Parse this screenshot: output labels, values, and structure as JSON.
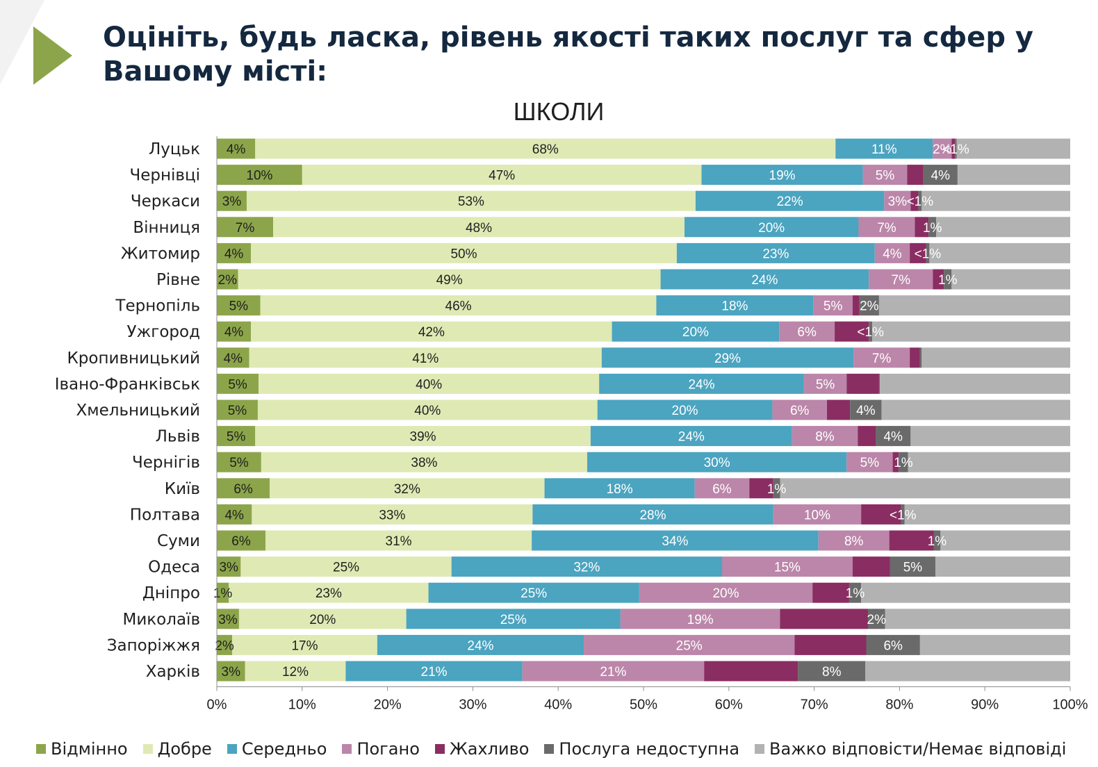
{
  "page": {
    "heading": "Оцініть, будь ласка, рівень якості таких послуг та сфер у Вашому місті:"
  },
  "colors": {
    "series": [
      "#8ca54a",
      "#dfe9b4",
      "#4ba4c0",
      "#bb86a9",
      "#8a2d62",
      "#6a6a6a",
      "#b2b2b2"
    ],
    "heading_text": "#14283f",
    "arrow": "#8ca54a",
    "label_dark": "#1f1f1f",
    "label_light": "#ffffff"
  },
  "chart_data": {
    "type": "bar",
    "orientation": "horizontal",
    "stacked": true,
    "title": "ШКОЛИ",
    "xlim": [
      0,
      100
    ],
    "x_ticks": [
      "0%",
      "10%",
      "20%",
      "30%",
      "40%",
      "50%",
      "60%",
      "70%",
      "80%",
      "90%",
      "100%"
    ],
    "legend_position": "bottom",
    "categories": [
      "Луцьк",
      "Чернівці",
      "Черкаси",
      "Вінниця",
      "Житомир",
      "Рівне",
      "Тернопіль",
      "Ужгород",
      "Кропивницький",
      "Івано-Франківськ",
      "Хмельницький",
      "Львів",
      "Чернігів",
      "Київ",
      "Полтава",
      "Суми",
      "Одеса",
      "Дніпро",
      "Миколаїв",
      "Запоріжжя",
      "Харків"
    ],
    "series": [
      {
        "name": "Відмінно",
        "values": [
          4.5,
          10,
          3.5,
          6.6,
          4,
          2.5,
          5.1,
          4,
          3.8,
          4.9,
          4.8,
          4.5,
          5.2,
          6.2,
          4.1,
          5.7,
          2.8,
          1.4,
          2.6,
          1.8,
          3.3
        ],
        "labels": [
          "4%",
          "10%",
          "3%",
          "7%",
          "4%",
          "2%",
          "5%",
          "4%",
          "4%",
          "5%",
          "5%",
          "5%",
          "5%",
          "6%",
          "4%",
          "6%",
          "3%",
          "1%",
          "3%",
          "2%",
          "3%"
        ]
      },
      {
        "name": "Добре",
        "values": [
          68,
          46.8,
          52.6,
          48.2,
          49.9,
          49.5,
          46.4,
          42.3,
          41.3,
          39.9,
          39.8,
          39.3,
          38.2,
          32.2,
          32.9,
          31.2,
          24.7,
          23.4,
          19.6,
          17,
          11.8
        ],
        "labels": [
          "68%",
          "47%",
          "53%",
          "48%",
          "50%",
          "49%",
          "46%",
          "42%",
          "41%",
          "40%",
          "40%",
          "39%",
          "38%",
          "32%",
          "33%",
          "31%",
          "25%",
          "23%",
          "20%",
          "17%",
          "12%"
        ]
      },
      {
        "name": "Середньо",
        "values": [
          11.4,
          18.9,
          22.1,
          20.4,
          23.2,
          24.4,
          18.4,
          19.6,
          29.5,
          24,
          20.5,
          23.6,
          30.4,
          17.6,
          28.2,
          33.6,
          31.7,
          24.7,
          25.1,
          24.2,
          20.7
        ],
        "labels": [
          "11%",
          "19%",
          "22%",
          "20%",
          "23%",
          "24%",
          "18%",
          "20%",
          "29%",
          "24%",
          "20%",
          "24%",
          "30%",
          "18%",
          "28%",
          "34%",
          "32%",
          "25%",
          "25%",
          "24%",
          "21%"
        ]
      },
      {
        "name": "Погано",
        "values": [
          2.2,
          5.2,
          3.1,
          6.6,
          4.1,
          7.5,
          4.6,
          6.5,
          6.6,
          5,
          6.4,
          7.7,
          5.4,
          6.4,
          10.3,
          8.3,
          15.3,
          20.3,
          18.7,
          24.7,
          21.3
        ],
        "labels": [
          "2%",
          "5%",
          "3%",
          "7%",
          "4%",
          "7%",
          "5%",
          "6%",
          "7%",
          "5%",
          "6%",
          "8%",
          "5%",
          "6%",
          "10%",
          "8%",
          "15%",
          "20%",
          "19%",
          "25%",
          "21%"
        ]
      },
      {
        "name": "Жахливо",
        "values": [
          0.4,
          1.9,
          0.9,
          1.6,
          1.9,
          1.3,
          0.8,
          4,
          1.2,
          3.8,
          2.7,
          2.1,
          0.7,
          2.8,
          4.7,
          5.2,
          4.4,
          4.3,
          10.3,
          8.4,
          11
        ]
      },
      {
        "name": "Послуга недоступна",
        "values": [
          0.2,
          4,
          0.4,
          0.9,
          0.4,
          0.9,
          2.3,
          0.4,
          0.2,
          0.1,
          3.7,
          4.1,
          1.1,
          0.8,
          0.4,
          0.8,
          5.3,
          1.4,
          2,
          6.3,
          7.9
        ],
        "labels": [
          "<1%",
          "4%",
          "<1%",
          "1%",
          "<1%",
          "1%",
          "2%",
          "<1%",
          "",
          "",
          "4%",
          "4%",
          "1%",
          "1%",
          "<1%",
          "1%",
          "5%",
          "1%",
          "2%",
          "6%",
          "8%"
        ]
      },
      {
        "name": "Важко відповісти/Немає відповіді",
        "values": [
          13.3,
          13.2,
          17.4,
          15.7,
          16.5,
          13.9,
          22.4,
          23.2,
          17.4,
          22.3,
          22.1,
          18.7,
          19,
          34,
          19.4,
          15.2,
          15.8,
          24.5,
          21.7,
          17.6,
          24
        ]
      }
    ]
  }
}
